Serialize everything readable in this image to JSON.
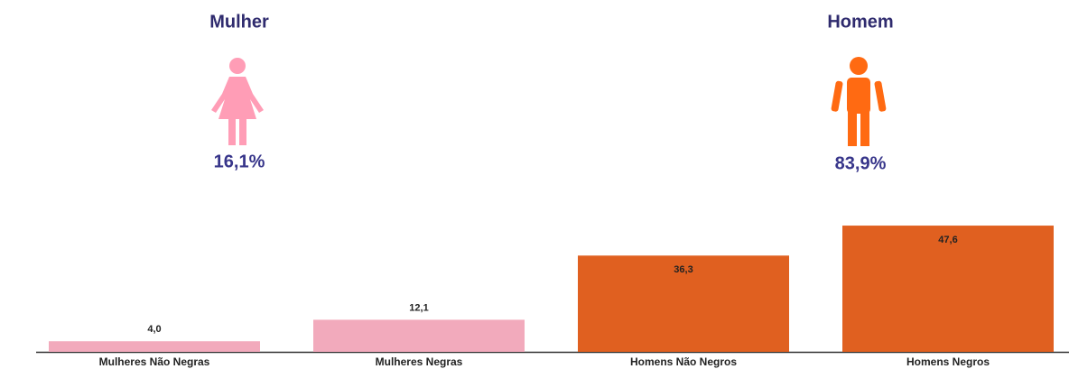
{
  "summary": [
    {
      "name": "Mulher",
      "value": 16.1,
      "value_label": "16,1%",
      "color": "#ff9db6"
    },
    {
      "name": "Homem",
      "value": 83.9,
      "value_label": "83,9%",
      "color": "#ff6a12"
    }
  ],
  "chart_data": {
    "type": "bar",
    "categories": [
      "Mulheres Não Negras",
      "Mulheres Negras",
      "Homens Não Negros",
      "Homens Negros"
    ],
    "values": [
      4.0,
      12.1,
      36.3,
      47.6
    ],
    "value_labels": [
      "4,0",
      "12,1",
      "36,3",
      "47,6"
    ],
    "colors": [
      "#f2aabc",
      "#f2aabc",
      "#e06020",
      "#e06020"
    ]
  }
}
